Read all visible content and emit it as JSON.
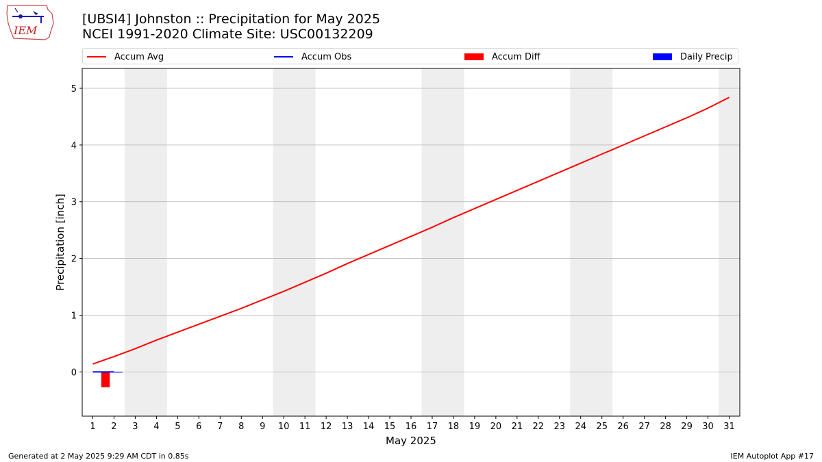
{
  "header": {
    "title": "[UBSI4] Johnston :: Precipitation for May 2025",
    "subtitle": "NCEI 1991-2020 Climate Site: USC00132209",
    "logo_text": "IEM"
  },
  "legend": {
    "items": [
      {
        "label": "Accum Avg",
        "kind": "line",
        "color": "#ff0000"
      },
      {
        "label": "Accum Obs",
        "kind": "line",
        "color": "#0000ff"
      },
      {
        "label": "Accum Diff",
        "kind": "box",
        "color": "#ff0000"
      },
      {
        "label": "Daily Precip",
        "kind": "box",
        "color": "#0000ff"
      }
    ]
  },
  "chart_data": {
    "type": "line",
    "xlabel": "May 2025",
    "ylabel": "Precipitation [inch]",
    "xlim": [
      0.5,
      31.5
    ],
    "ylim": [
      -0.78,
      5.35
    ],
    "x_ticks": [
      1,
      2,
      3,
      4,
      5,
      6,
      7,
      8,
      9,
      10,
      11,
      12,
      13,
      14,
      15,
      16,
      17,
      18,
      19,
      20,
      21,
      22,
      23,
      24,
      25,
      26,
      27,
      28,
      29,
      30,
      31
    ],
    "y_ticks": [
      0,
      1,
      2,
      3,
      4,
      5
    ],
    "grid": "horizontal",
    "weekend_shading": [
      [
        2.5,
        4.5
      ],
      [
        9.5,
        11.5
      ],
      [
        16.5,
        18.5
      ],
      [
        23.5,
        25.5
      ],
      [
        30.5,
        31.5
      ]
    ],
    "shade_color": "#eeeeee",
    "series": [
      {
        "name": "Accum Avg",
        "kind": "line",
        "color": "#ff0000",
        "x": [
          1,
          2,
          3,
          4,
          5,
          6,
          7,
          8,
          9,
          10,
          11,
          12,
          13,
          14,
          15,
          16,
          17,
          18,
          19,
          20,
          21,
          22,
          23,
          24,
          25,
          26,
          27,
          28,
          29,
          30,
          31
        ],
        "values": [
          0.14,
          0.27,
          0.41,
          0.56,
          0.7,
          0.84,
          0.98,
          1.12,
          1.27,
          1.42,
          1.58,
          1.74,
          1.91,
          2.07,
          2.23,
          2.39,
          2.55,
          2.72,
          2.88,
          3.04,
          3.2,
          3.36,
          3.52,
          3.68,
          3.84,
          4.0,
          4.16,
          4.32,
          4.48,
          4.65,
          4.84
        ]
      },
      {
        "name": "Accum Obs",
        "kind": "line",
        "color": "#0000ff",
        "x": [
          1,
          2
        ],
        "values": [
          0.0,
          0.0
        ]
      },
      {
        "name": "Accum Diff",
        "kind": "bar",
        "color": "#ff0000",
        "x": [
          2
        ],
        "values": [
          -0.27
        ]
      },
      {
        "name": "Daily Precip",
        "kind": "bar",
        "color": "#0000ff",
        "x": [
          2
        ],
        "values": [
          0.0
        ]
      }
    ]
  },
  "footer": {
    "left": "Generated at 2 May 2025 9:29 AM CDT in 0.85s",
    "right": "IEM Autoplot App #17"
  }
}
